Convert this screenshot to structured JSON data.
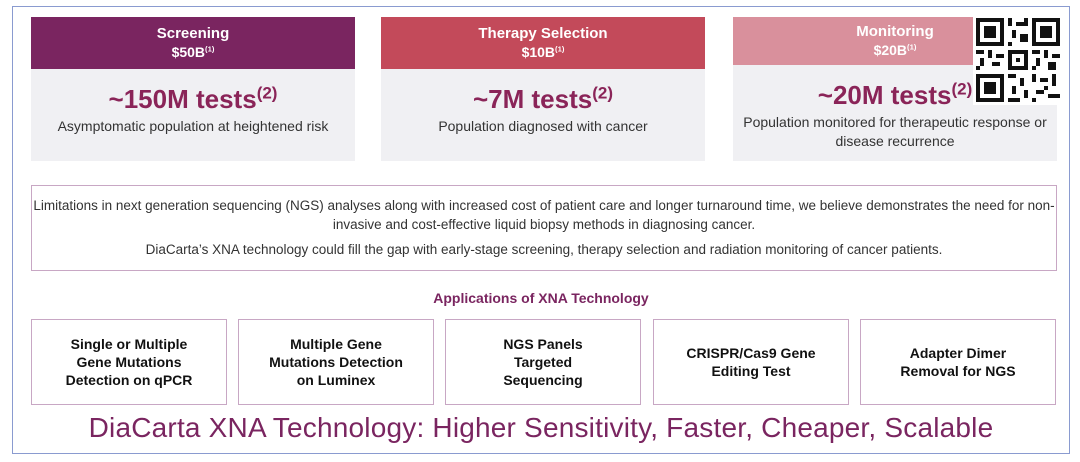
{
  "cards": {
    "screening": {
      "title": "Screening",
      "amount": "$50B",
      "amount_note": "(1)",
      "tests": "~150M tests",
      "tests_note": "(2)",
      "description": "Asymptomatic population at heightened risk"
    },
    "therapy": {
      "title": "Therapy Selection",
      "amount": "$10B",
      "amount_note": "(1)",
      "tests": "~7M tests",
      "tests_note": "(2)",
      "description": "Population diagnosed with cancer"
    },
    "monitoring": {
      "title": "Monitoring",
      "amount": "$20B",
      "amount_note": "(1)",
      "tests": "~20M tests",
      "tests_note": "(2)",
      "description": "Population monitored for therapeutic response or disease recurrence"
    }
  },
  "statement": {
    "line1": "Limitations in next generation sequencing (NGS) analyses along with increased cost of patient care and longer turnaround time, we believe demonstrates the need for non-invasive and cost-effective liquid biopsy methods in diagnosing cancer.",
    "line2": "DiaCarta’s XNA technology could fill the gap with early-stage screening, therapy selection and radiation monitoring of cancer patients."
  },
  "applications": {
    "title": "Applications of XNA Technology",
    "items": [
      "Single or Multiple\nGene Mutations\nDetection on qPCR",
      "Multiple Gene\nMutations Detection\non Luminex",
      "NGS Panels\nTargeted\nSequencing",
      "CRISPR/Cas9 Gene\nEditing Test",
      "Adapter Dimer\nRemoval for NGS"
    ]
  },
  "tagline": "DiaCarta XNA Technology: Higher Sensitivity, Faster, Cheaper, Scalable",
  "colors": {
    "plum": "#7a2560",
    "rose": "#c34a5a",
    "pink": "#d9909c",
    "card_bg": "#f0f0f3",
    "border": "#c8a7c4"
  }
}
